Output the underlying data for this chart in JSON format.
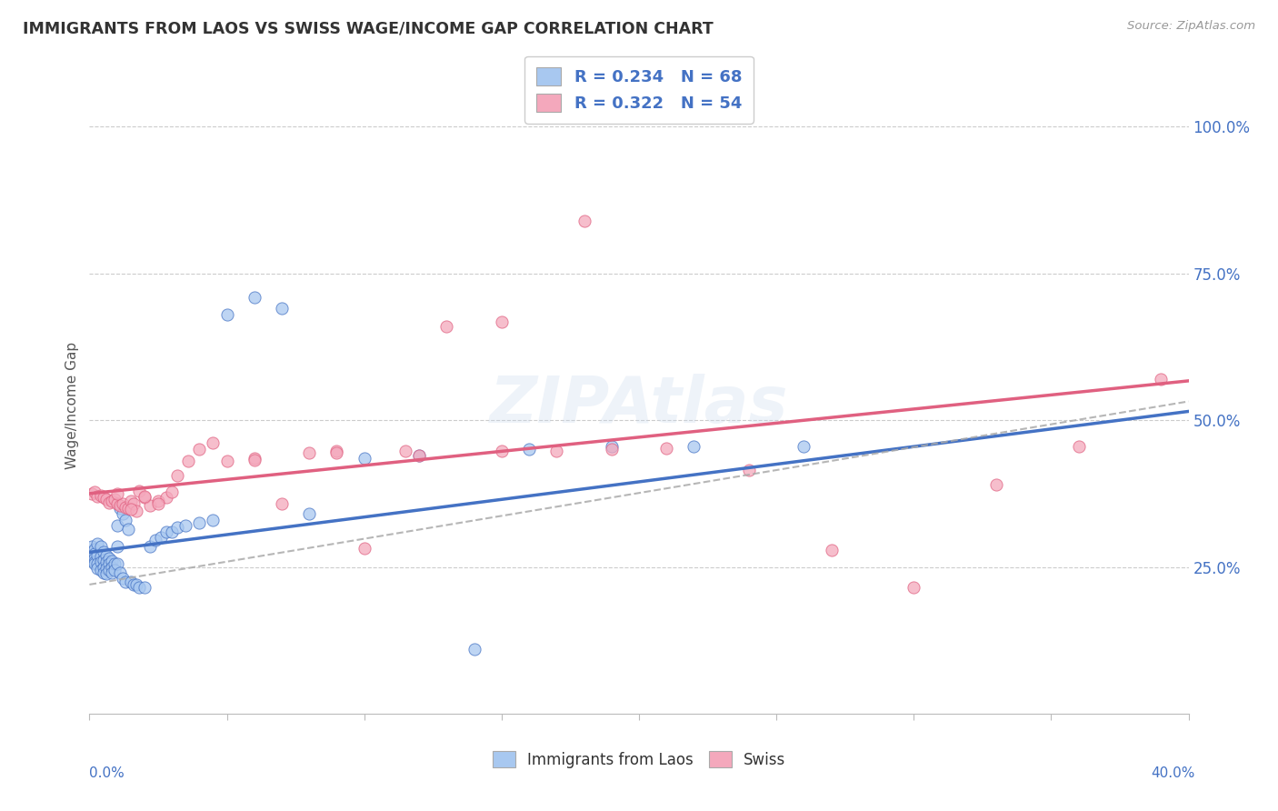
{
  "title": "IMMIGRANTS FROM LAOS VS SWISS WAGE/INCOME GAP CORRELATION CHART",
  "source": "Source: ZipAtlas.com",
  "ylabel": "Wage/Income Gap",
  "xmin": 0.0,
  "xmax": 0.4,
  "ymin": 0.0,
  "ymax": 1.05,
  "yticks": [
    0.25,
    0.5,
    0.75,
    1.0
  ],
  "ytick_labels": [
    "25.0%",
    "50.0%",
    "75.0%",
    "100.0%"
  ],
  "xticks": [
    0.0,
    0.05,
    0.1,
    0.15,
    0.2,
    0.25,
    0.3,
    0.35,
    0.4
  ],
  "blue_R": 0.234,
  "blue_N": 68,
  "pink_R": 0.322,
  "pink_N": 54,
  "blue_color": "#A8C8F0",
  "pink_color": "#F4A8BC",
  "blue_line_color": "#4472C4",
  "pink_line_color": "#E06080",
  "dash_line_color": "#AAAAAA",
  "title_color": "#333333",
  "axis_label_color": "#4472C4",
  "legend_text_color": "#4472C4",
  "watermark": "ZIPAtlas",
  "blue_intercept": 0.275,
  "blue_slope": 0.6,
  "pink_intercept": 0.375,
  "pink_slope": 0.48,
  "dash_intercept": 0.22,
  "dash_slope": 0.78,
  "blue_scatter_x": [
    0.001,
    0.001,
    0.001,
    0.001,
    0.002,
    0.002,
    0.002,
    0.002,
    0.002,
    0.003,
    0.003,
    0.003,
    0.003,
    0.004,
    0.004,
    0.004,
    0.004,
    0.005,
    0.005,
    0.005,
    0.005,
    0.006,
    0.006,
    0.006,
    0.006,
    0.007,
    0.007,
    0.007,
    0.008,
    0.008,
    0.008,
    0.009,
    0.009,
    0.01,
    0.01,
    0.01,
    0.011,
    0.011,
    0.012,
    0.012,
    0.013,
    0.013,
    0.014,
    0.015,
    0.016,
    0.017,
    0.018,
    0.02,
    0.022,
    0.024,
    0.026,
    0.028,
    0.03,
    0.032,
    0.035,
    0.04,
    0.045,
    0.05,
    0.06,
    0.07,
    0.08,
    0.1,
    0.12,
    0.14,
    0.16,
    0.19,
    0.22,
    0.26
  ],
  "blue_scatter_y": [
    0.285,
    0.275,
    0.268,
    0.26,
    0.28,
    0.272,
    0.265,
    0.258,
    0.255,
    0.29,
    0.27,
    0.255,
    0.248,
    0.285,
    0.268,
    0.258,
    0.245,
    0.275,
    0.262,
    0.25,
    0.24,
    0.27,
    0.258,
    0.248,
    0.238,
    0.265,
    0.255,
    0.245,
    0.26,
    0.25,
    0.24,
    0.255,
    0.245,
    0.32,
    0.285,
    0.255,
    0.35,
    0.24,
    0.34,
    0.23,
    0.33,
    0.225,
    0.315,
    0.225,
    0.22,
    0.22,
    0.215,
    0.215,
    0.285,
    0.295,
    0.3,
    0.31,
    0.31,
    0.318,
    0.32,
    0.325,
    0.33,
    0.68,
    0.71,
    0.69,
    0.34,
    0.435,
    0.44,
    0.11,
    0.45,
    0.455,
    0.455,
    0.455
  ],
  "pink_scatter_x": [
    0.001,
    0.002,
    0.003,
    0.004,
    0.005,
    0.006,
    0.007,
    0.008,
    0.009,
    0.01,
    0.011,
    0.012,
    0.013,
    0.014,
    0.015,
    0.016,
    0.017,
    0.018,
    0.02,
    0.022,
    0.025,
    0.028,
    0.032,
    0.036,
    0.04,
    0.045,
    0.05,
    0.06,
    0.07,
    0.08,
    0.09,
    0.1,
    0.115,
    0.13,
    0.15,
    0.17,
    0.19,
    0.21,
    0.24,
    0.27,
    0.3,
    0.33,
    0.36,
    0.39,
    0.01,
    0.015,
    0.02,
    0.025,
    0.03,
    0.06,
    0.09,
    0.12,
    0.15,
    0.18
  ],
  "pink_scatter_y": [
    0.375,
    0.378,
    0.37,
    0.372,
    0.368,
    0.365,
    0.36,
    0.362,
    0.365,
    0.358,
    0.355,
    0.358,
    0.352,
    0.35,
    0.362,
    0.358,
    0.345,
    0.38,
    0.368,
    0.355,
    0.362,
    0.368,
    0.405,
    0.43,
    0.45,
    0.462,
    0.43,
    0.435,
    0.358,
    0.445,
    0.448,
    0.282,
    0.448,
    0.66,
    0.668,
    0.448,
    0.45,
    0.452,
    0.415,
    0.278,
    0.215,
    0.39,
    0.455,
    0.57,
    0.375,
    0.348,
    0.37,
    0.358,
    0.378,
    0.432,
    0.445,
    0.44,
    0.448,
    0.84
  ]
}
